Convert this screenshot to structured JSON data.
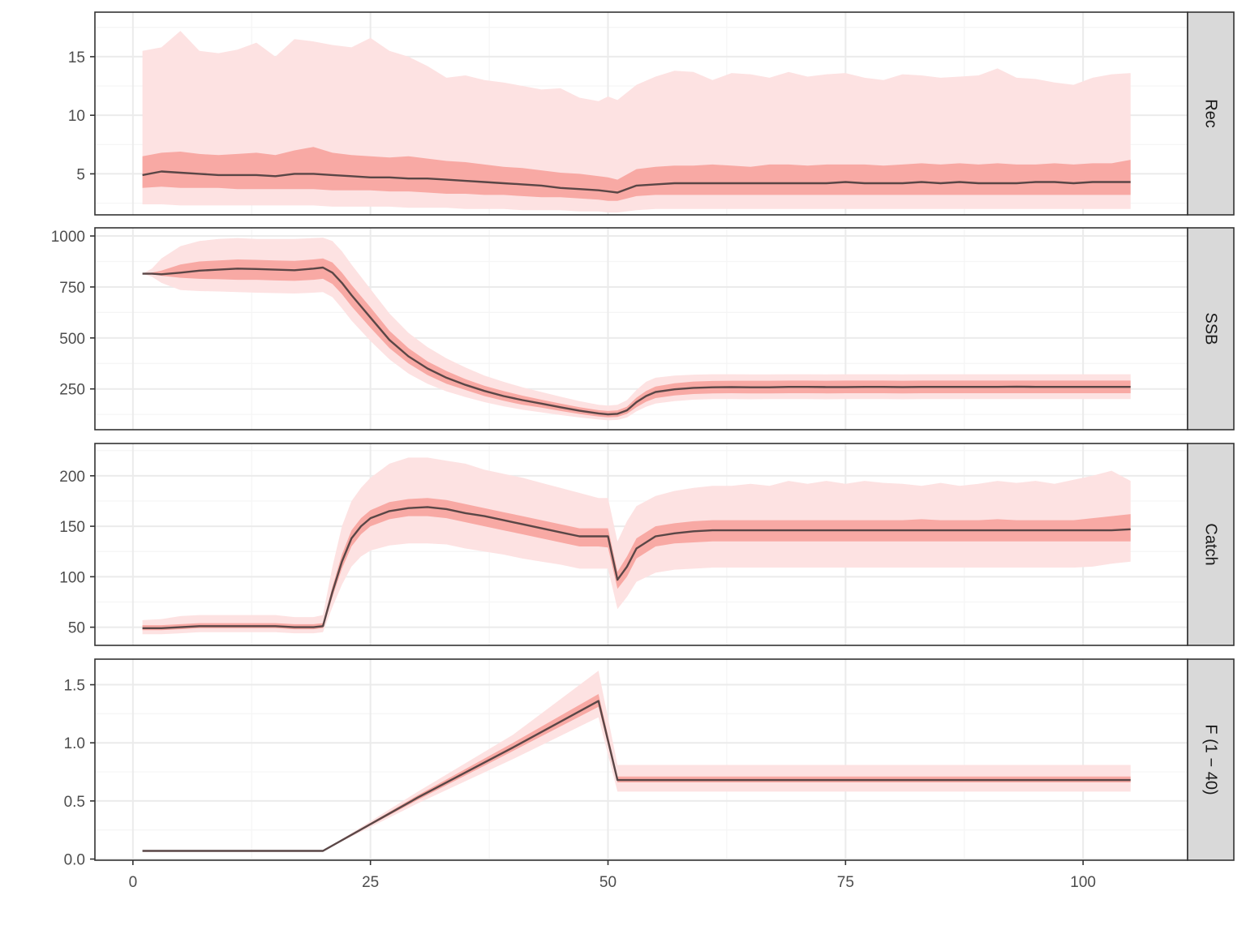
{
  "chart_data": {
    "type": "area",
    "x_ticks": [
      0,
      25,
      50,
      75,
      100
    ],
    "xlim": [
      -4,
      111
    ],
    "colors": {
      "outer_band": "#fde2e2",
      "inner_band": "#f8a9a4",
      "median_line": "#5a4646",
      "strip_fill": "#d9d9d9",
      "frame": "#333333",
      "grid_major": "#ebebeb",
      "grid_minor": "#f5f5f5"
    },
    "panels": [
      {
        "label": "Rec",
        "ylim": [
          1.5,
          18.8
        ],
        "y_ticks": [
          5,
          10,
          15
        ],
        "y_tick_labels": [
          "5",
          "10",
          "15"
        ],
        "x": [
          1,
          3,
          5,
          7,
          9,
          11,
          13,
          15,
          17,
          19,
          21,
          23,
          25,
          27,
          29,
          31,
          33,
          35,
          37,
          39,
          41,
          43,
          45,
          47,
          49,
          50,
          51,
          53,
          55,
          57,
          59,
          61,
          63,
          65,
          67,
          69,
          71,
          73,
          75,
          77,
          79,
          81,
          83,
          85,
          87,
          89,
          91,
          93,
          95,
          97,
          99,
          101,
          103,
          105
        ],
        "median": [
          4.9,
          5.2,
          5.1,
          5.0,
          4.9,
          4.9,
          4.9,
          4.8,
          5.0,
          5.0,
          4.9,
          4.8,
          4.7,
          4.7,
          4.6,
          4.6,
          4.5,
          4.4,
          4.3,
          4.2,
          4.1,
          4.0,
          3.8,
          3.7,
          3.6,
          3.5,
          3.4,
          4.0,
          4.1,
          4.2,
          4.2,
          4.2,
          4.2,
          4.2,
          4.2,
          4.2,
          4.2,
          4.2,
          4.3,
          4.2,
          4.2,
          4.2,
          4.3,
          4.2,
          4.3,
          4.2,
          4.2,
          4.2,
          4.3,
          4.3,
          4.2,
          4.3,
          4.3,
          4.3
        ],
        "q25": [
          3.8,
          3.9,
          3.8,
          3.8,
          3.8,
          3.7,
          3.7,
          3.7,
          3.7,
          3.7,
          3.6,
          3.6,
          3.6,
          3.5,
          3.5,
          3.4,
          3.3,
          3.3,
          3.2,
          3.2,
          3.1,
          3.0,
          3.0,
          2.9,
          2.8,
          2.7,
          2.7,
          3.1,
          3.2,
          3.2,
          3.2,
          3.2,
          3.2,
          3.2,
          3.2,
          3.2,
          3.2,
          3.2,
          3.2,
          3.2,
          3.2,
          3.2,
          3.2,
          3.2,
          3.2,
          3.2,
          3.2,
          3.2,
          3.2,
          3.2,
          3.2,
          3.2,
          3.2,
          3.2
        ],
        "q75": [
          6.5,
          6.8,
          6.9,
          6.7,
          6.6,
          6.7,
          6.8,
          6.6,
          7.0,
          7.3,
          6.8,
          6.6,
          6.5,
          6.4,
          6.5,
          6.3,
          6.1,
          6.0,
          5.8,
          5.6,
          5.5,
          5.3,
          5.1,
          5.0,
          4.8,
          4.7,
          4.5,
          5.4,
          5.6,
          5.7,
          5.7,
          5.8,
          5.7,
          5.6,
          5.8,
          5.8,
          5.7,
          5.8,
          5.8,
          5.8,
          5.7,
          5.8,
          5.9,
          5.8,
          5.9,
          5.8,
          5.9,
          5.8,
          5.8,
          5.9,
          5.8,
          5.9,
          5.9,
          6.2
        ],
        "q05": [
          2.4,
          2.4,
          2.3,
          2.3,
          2.3,
          2.3,
          2.3,
          2.3,
          2.3,
          2.3,
          2.2,
          2.2,
          2.2,
          2.2,
          2.1,
          2.1,
          2.1,
          2.0,
          2.0,
          2.0,
          1.9,
          1.9,
          1.9,
          1.8,
          1.8,
          1.7,
          1.7,
          1.9,
          2.0,
          2.0,
          2.0,
          2.0,
          2.0,
          2.0,
          2.0,
          2.0,
          2.0,
          2.0,
          2.0,
          2.0,
          2.0,
          2.0,
          2.0,
          2.0,
          2.0,
          2.0,
          2.0,
          2.0,
          2.0,
          2.0,
          2.0,
          2.0,
          2.0,
          2.0
        ],
        "q95": [
          15.5,
          15.8,
          17.2,
          15.5,
          15.3,
          15.6,
          16.2,
          15.0,
          16.5,
          16.3,
          16.0,
          15.8,
          16.6,
          15.5,
          15.0,
          14.2,
          13.2,
          13.4,
          13.0,
          12.8,
          12.5,
          12.2,
          12.3,
          11.5,
          11.2,
          11.6,
          11.3,
          12.6,
          13.3,
          13.8,
          13.7,
          13.0,
          13.6,
          13.5,
          13.2,
          13.7,
          13.3,
          13.5,
          13.6,
          13.2,
          13.0,
          13.5,
          13.4,
          13.2,
          13.3,
          13.4,
          14.0,
          13.2,
          13.1,
          12.8,
          12.6,
          13.2,
          13.5,
          13.6
        ]
      },
      {
        "label": "SSB",
        "ylim": [
          50,
          1040
        ],
        "y_ticks": [
          250,
          500,
          750,
          1000
        ],
        "y_tick_labels": [
          "250",
          "500",
          "750",
          "1000"
        ],
        "x": [
          1,
          2,
          3,
          5,
          7,
          9,
          11,
          13,
          15,
          17,
          19,
          20,
          21,
          22,
          23,
          25,
          27,
          29,
          31,
          33,
          35,
          37,
          39,
          41,
          43,
          45,
          47,
          49,
          50,
          51,
          52,
          53,
          54,
          55,
          57,
          59,
          61,
          63,
          65,
          67,
          69,
          71,
          73,
          75,
          77,
          79,
          81,
          83,
          85,
          87,
          89,
          91,
          93,
          95,
          97,
          99,
          101,
          103,
          105
        ],
        "median": [
          815,
          815,
          812,
          820,
          830,
          835,
          840,
          838,
          835,
          832,
          840,
          845,
          820,
          770,
          710,
          600,
          490,
          410,
          350,
          305,
          270,
          240,
          215,
          195,
          178,
          160,
          143,
          130,
          125,
          128,
          145,
          185,
          215,
          235,
          248,
          255,
          258,
          259,
          258,
          258,
          260,
          260,
          259,
          259,
          260,
          260,
          259,
          260,
          260,
          260,
          260,
          260,
          261,
          260,
          260,
          260,
          260,
          260,
          260
        ],
        "q25": [
          815,
          812,
          805,
          795,
          790,
          788,
          785,
          785,
          782,
          780,
          785,
          790,
          765,
          715,
          655,
          550,
          450,
          375,
          318,
          275,
          245,
          215,
          192,
          172,
          158,
          142,
          127,
          115,
          111,
          113,
          128,
          160,
          187,
          205,
          218,
          225,
          228,
          229,
          228,
          228,
          229,
          229,
          228,
          229,
          229,
          229,
          228,
          229,
          229,
          229,
          229,
          229,
          229,
          229,
          229,
          229,
          229,
          229,
          229
        ],
        "q75": [
          815,
          820,
          830,
          860,
          875,
          880,
          885,
          883,
          880,
          878,
          885,
          890,
          870,
          820,
          760,
          650,
          535,
          450,
          385,
          338,
          298,
          265,
          240,
          217,
          197,
          178,
          160,
          146,
          142,
          145,
          163,
          207,
          240,
          262,
          278,
          286,
          289,
          290,
          290,
          290,
          291,
          291,
          290,
          291,
          291,
          291,
          290,
          291,
          291,
          291,
          291,
          291,
          291,
          291,
          291,
          291,
          291,
          291,
          291
        ],
        "q05": [
          815,
          800,
          770,
          735,
          730,
          728,
          725,
          722,
          720,
          718,
          722,
          725,
          700,
          645,
          585,
          485,
          395,
          325,
          275,
          238,
          210,
          185,
          165,
          148,
          135,
          122,
          110,
          100,
          96,
          98,
          110,
          140,
          162,
          178,
          190,
          197,
          200,
          200,
          199,
          200,
          200,
          200,
          199,
          200,
          200,
          200,
          199,
          200,
          200,
          200,
          200,
          200,
          200,
          200,
          200,
          200,
          200,
          200,
          200
        ],
        "q95": [
          815,
          840,
          890,
          950,
          975,
          985,
          990,
          985,
          985,
          985,
          990,
          992,
          975,
          925,
          860,
          740,
          620,
          525,
          455,
          400,
          355,
          315,
          285,
          258,
          235,
          212,
          190,
          172,
          168,
          172,
          195,
          245,
          285,
          305,
          315,
          320,
          322,
          322,
          321,
          321,
          322,
          322,
          321,
          322,
          322,
          322,
          321,
          322,
          322,
          322,
          322,
          322,
          322,
          322,
          322,
          322,
          322,
          322,
          322
        ]
      },
      {
        "label": "Catch",
        "ylim": [
          32,
          232
        ],
        "y_ticks": [
          50,
          100,
          150,
          200
        ],
        "y_tick_labels": [
          "50",
          "100",
          "150",
          "200"
        ],
        "x": [
          1,
          3,
          5,
          7,
          9,
          11,
          13,
          15,
          17,
          19,
          20,
          21,
          22,
          23,
          24,
          25,
          27,
          29,
          31,
          33,
          35,
          37,
          39,
          41,
          43,
          45,
          47,
          49,
          50,
          51,
          52,
          53,
          55,
          57,
          59,
          61,
          63,
          65,
          67,
          69,
          71,
          73,
          75,
          77,
          79,
          81,
          83,
          85,
          87,
          89,
          91,
          93,
          95,
          97,
          99,
          101,
          103,
          105
        ],
        "median": [
          49,
          49,
          50,
          51,
          51,
          51,
          51,
          51,
          50,
          50,
          51,
          85,
          115,
          138,
          150,
          158,
          165,
          168,
          169,
          167,
          163,
          160,
          156,
          152,
          148,
          144,
          140,
          140,
          140,
          97,
          110,
          128,
          140,
          143,
          145,
          146,
          146,
          146,
          146,
          146,
          146,
          146,
          146,
          146,
          146,
          146,
          146,
          146,
          146,
          146,
          146,
          146,
          146,
          146,
          146,
          146,
          146,
          147
        ],
        "q25": [
          47,
          47,
          48,
          49,
          49,
          49,
          49,
          49,
          48,
          48,
          49,
          80,
          108,
          130,
          142,
          150,
          157,
          160,
          160,
          158,
          154,
          150,
          146,
          142,
          138,
          134,
          130,
          130,
          129,
          88,
          100,
          118,
          130,
          133,
          134,
          135,
          135,
          135,
          135,
          135,
          135,
          135,
          135,
          135,
          135,
          135,
          135,
          135,
          135,
          135,
          135,
          135,
          135,
          135,
          135,
          135,
          135,
          135
        ],
        "q75": [
          52,
          52,
          53,
          54,
          54,
          54,
          54,
          54,
          53,
          53,
          54,
          90,
          122,
          146,
          158,
          166,
          174,
          177,
          178,
          176,
          172,
          168,
          164,
          160,
          156,
          152,
          148,
          148,
          148,
          105,
          120,
          138,
          150,
          153,
          155,
          156,
          156,
          156,
          156,
          156,
          156,
          156,
          156,
          156,
          156,
          156,
          157,
          156,
          156,
          156,
          157,
          156,
          156,
          156,
          156,
          158,
          160,
          162
        ],
        "q05": [
          43,
          43,
          44,
          45,
          45,
          45,
          45,
          45,
          44,
          44,
          45,
          70,
          92,
          110,
          120,
          126,
          131,
          133,
          133,
          132,
          128,
          125,
          122,
          118,
          115,
          112,
          108,
          108,
          108,
          68,
          80,
          95,
          104,
          107,
          108,
          109,
          109,
          109,
          109,
          109,
          109,
          109,
          109,
          109,
          109,
          109,
          109,
          109,
          109,
          109,
          109,
          109,
          109,
          109,
          109,
          110,
          113,
          115
        ],
        "q95": [
          57,
          58,
          61,
          62,
          62,
          62,
          62,
          62,
          60,
          60,
          62,
          110,
          150,
          175,
          188,
          198,
          212,
          218,
          218,
          215,
          212,
          206,
          202,
          198,
          193,
          188,
          183,
          178,
          178,
          135,
          155,
          170,
          180,
          185,
          188,
          190,
          190,
          192,
          190,
          195,
          192,
          195,
          192,
          195,
          193,
          192,
          190,
          193,
          190,
          192,
          195,
          193,
          195,
          192,
          196,
          200,
          205,
          195
        ]
      },
      {
        "label": "F (1 − 40)",
        "ylim": [
          -0.01,
          1.72
        ],
        "y_ticks": [
          0.0,
          0.5,
          1.0,
          1.5
        ],
        "y_tick_labels": [
          "0.0",
          "0.5",
          "1.0",
          "1.5"
        ],
        "x": [
          1,
          10,
          20,
          30,
          40,
          49,
          51,
          60,
          70,
          80,
          90,
          100,
          105
        ],
        "median": [
          0.07,
          0.07,
          0.07,
          0.53,
          0.96,
          1.36,
          0.68,
          0.68,
          0.68,
          0.68,
          0.68,
          0.68,
          0.68
        ],
        "q25": [
          0.07,
          0.07,
          0.07,
          0.51,
          0.93,
          1.31,
          0.66,
          0.66,
          0.66,
          0.66,
          0.66,
          0.66,
          0.66
        ],
        "q75": [
          0.07,
          0.07,
          0.07,
          0.55,
          1.0,
          1.42,
          0.71,
          0.71,
          0.71,
          0.71,
          0.71,
          0.71,
          0.71
        ],
        "q05": [
          0.07,
          0.07,
          0.07,
          0.48,
          0.86,
          1.22,
          0.58,
          0.58,
          0.58,
          0.58,
          0.58,
          0.58,
          0.58
        ],
        "q95": [
          0.07,
          0.07,
          0.07,
          0.58,
          1.07,
          1.62,
          0.81,
          0.81,
          0.81,
          0.81,
          0.81,
          0.81,
          0.81
        ]
      }
    ]
  }
}
